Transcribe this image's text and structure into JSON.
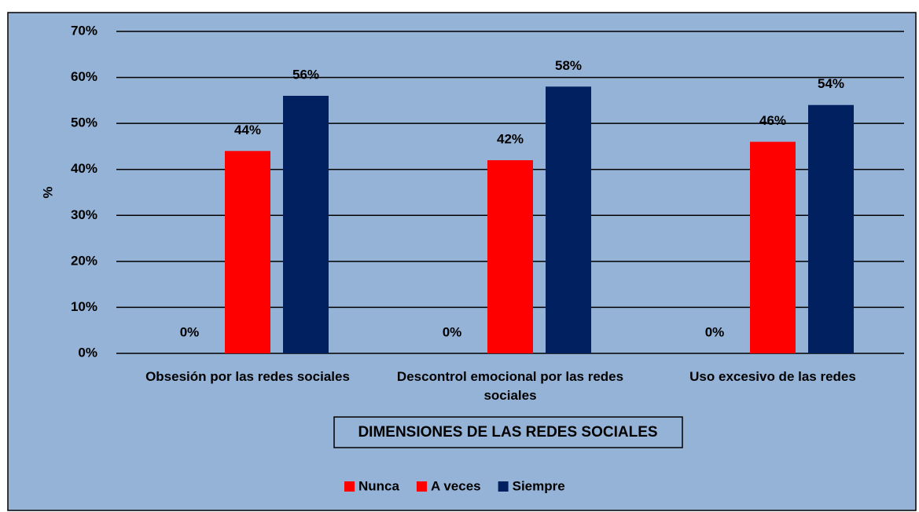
{
  "chart_data": {
    "type": "bar",
    "categories": [
      "Obsesión por las redes sociales",
      "Descontrol emocional por las redes sociales",
      "Uso excesivo de las redes"
    ],
    "series": [
      {
        "name": "Nunca",
        "color": "#ff0000",
        "values": [
          0,
          0,
          0
        ],
        "value_labels": [
          "0%",
          "0%",
          "0%"
        ]
      },
      {
        "name": "A veces",
        "color": "#ff0000",
        "values": [
          44,
          42,
          46
        ],
        "value_labels": [
          "44%",
          "42%",
          "46%"
        ]
      },
      {
        "name": "Siempre",
        "color": "#002060",
        "values": [
          56,
          58,
          54
        ],
        "value_labels": [
          "56%",
          "58%",
          "54%"
        ]
      }
    ],
    "y_label": "%",
    "x_label": "DIMENSIONES DE LAS REDES SOCIALES",
    "ylim": [
      0,
      70
    ],
    "yticks": [
      {
        "value": 0,
        "label": "0%"
      },
      {
        "value": 10,
        "label": "10%"
      },
      {
        "value": 20,
        "label": "20%"
      },
      {
        "value": 30,
        "label": "30%"
      },
      {
        "value": 40,
        "label": "40%"
      },
      {
        "value": 50,
        "label": "50%"
      },
      {
        "value": 60,
        "label": "60%"
      },
      {
        "value": 70,
        "label": "70%"
      }
    ],
    "grid": true,
    "legend": "bottom",
    "background": "#95b3d7"
  }
}
